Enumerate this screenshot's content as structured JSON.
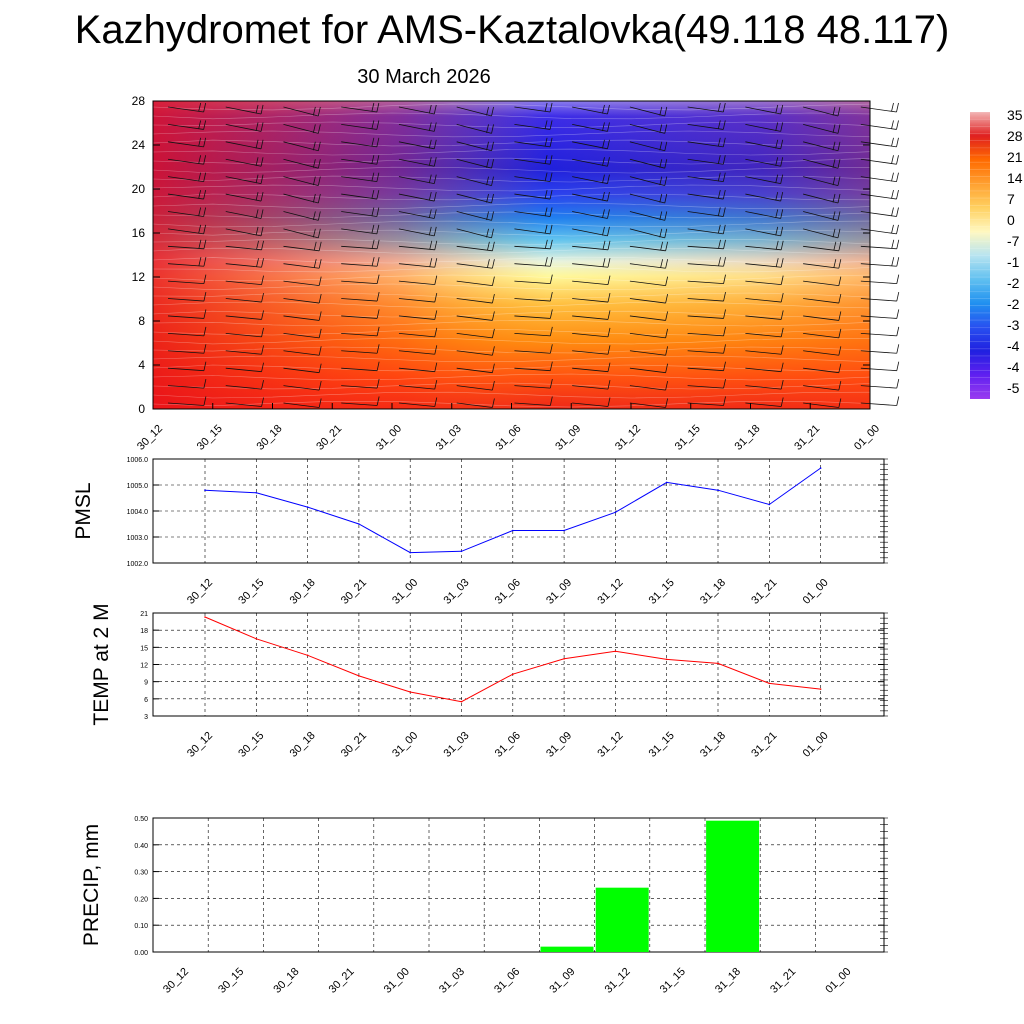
{
  "title": "Kazhydromet for AMS-Kaztalovka(49.118 48.117)",
  "subtitle": "30 March 2026",
  "time_labels": [
    "30_12",
    "30_15",
    "30_18",
    "30_21",
    "31_00",
    "31_03",
    "31_06",
    "31_09",
    "31_12",
    "31_15",
    "31_18",
    "31_21",
    "01_00"
  ],
  "chart_data": [
    {
      "type": "heatmap",
      "name": "upper-air temperature cross-section with wind barbs",
      "x": [
        "30_12",
        "30_15",
        "30_18",
        "30_21",
        "31_00",
        "31_03",
        "31_06",
        "31_09",
        "31_12",
        "31_15",
        "31_18",
        "31_21",
        "01_00"
      ],
      "ylim": [
        0,
        28
      ],
      "yticks": [
        0,
        4,
        8,
        12,
        16,
        20,
        24,
        28
      ],
      "colorbar_labels": [
        "35",
        "28",
        "21",
        "14",
        "7",
        "0",
        "-7",
        "-1",
        "-2",
        "-2",
        "-3",
        "-4",
        "-4",
        "-5"
      ],
      "colorbar_colors": [
        "#f2b5b5",
        "#e02020",
        "#ff6a00",
        "#ffa030",
        "#ffd060",
        "#fff8c0",
        "#b8e4f0",
        "#60c0f0",
        "#2090f0",
        "#2850f0",
        "#2020e0",
        "#6020f0",
        "#9a3cf0"
      ],
      "wind_barbs": true
    },
    {
      "type": "line",
      "name": "PMSL",
      "ylabel": "PMSL",
      "color": "#0000ff",
      "x": [
        "30_12",
        "30_15",
        "30_18",
        "30_21",
        "31_00",
        "31_03",
        "31_06",
        "31_09",
        "31_12",
        "31_15",
        "31_18",
        "31_21",
        "01_00"
      ],
      "values": [
        1004.8,
        1004.7,
        1004.15,
        1003.5,
        1002.4,
        1002.45,
        1003.25,
        1003.25,
        1003.95,
        1005.1,
        1004.8,
        1004.25,
        1005.65
      ],
      "ylim": [
        1002.0,
        1006.0
      ],
      "ytick_labels": [
        "1002.0",
        "1003.0",
        "1004.0",
        "1005.0",
        "1006.0"
      ]
    },
    {
      "type": "line",
      "name": "TEMP at 2 M",
      "ylabel": "TEMP at 2 M",
      "color": "#ff0000",
      "x": [
        "30_12",
        "30_15",
        "30_18",
        "30_21",
        "31_00",
        "31_03",
        "31_06",
        "31_09",
        "31_12",
        "31_15",
        "31_18",
        "31_21",
        "01_00"
      ],
      "values": [
        20.3,
        16.5,
        13.6,
        10.0,
        7.2,
        5.5,
        10.3,
        13.0,
        14.3,
        12.9,
        12.2,
        8.7,
        7.7
      ],
      "ylim": [
        3,
        21
      ],
      "ytick_labels": [
        "3",
        "6",
        "9",
        "12",
        "15",
        "18",
        "21"
      ]
    },
    {
      "type": "bar",
      "name": "PRECIP, mm",
      "ylabel": "PRECIP, mm",
      "color": "#00ff00",
      "x": [
        "30_12",
        "30_15",
        "30_18",
        "30_21",
        "31_00",
        "31_03",
        "31_06",
        "31_09",
        "31_12",
        "31_15",
        "31_18",
        "31_21",
        "01_00"
      ],
      "values": [
        0,
        0,
        0,
        0,
        0,
        0,
        0,
        0.02,
        0.24,
        0,
        0.49,
        0,
        0
      ],
      "ylim": [
        0,
        0.5
      ],
      "ytick_labels": [
        "0.00",
        "0.10",
        "0.20",
        "0.30",
        "0.40",
        "0.50"
      ]
    }
  ]
}
